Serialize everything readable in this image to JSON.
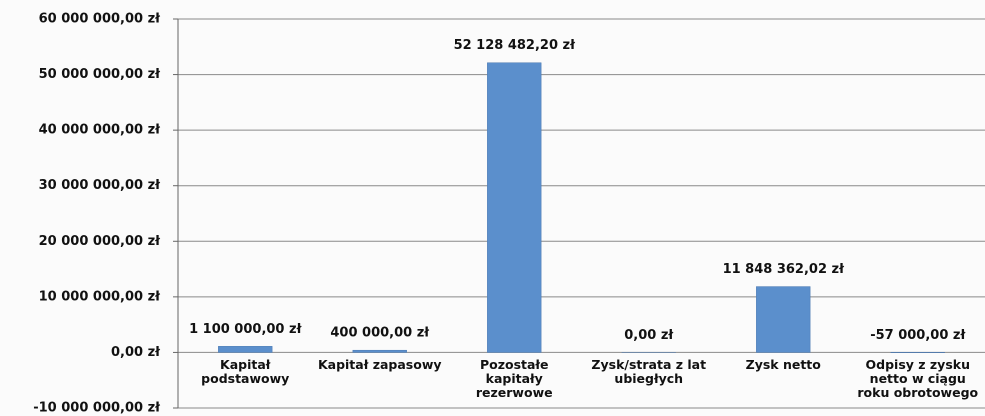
{
  "chart_data": {
    "type": "bar",
    "categories": [
      "Kapitał podstawowy",
      "Kapitał zapasowy",
      "Pozostałe kapitały rezerwowe",
      "Zysk/strata z lat ubiegłych",
      "Zysk netto",
      "Odpisy z zysku netto w ciągu roku obrotowego"
    ],
    "values": [
      1100000,
      400000,
      52128482.2,
      0,
      11848362.02,
      -57000
    ],
    "value_labels": [
      "1 100 000,00 zł",
      "400 000,00 zł",
      "52 128 482,20 zł",
      "0,00 zł",
      "11 848 362,02 zł",
      "-57 000,00 zł"
    ],
    "color": "#5b8fcc",
    "ylim": [
      -10000000,
      60000000
    ],
    "yticks": [
      {
        "value": -10000000,
        "label": "-10 000 000,00 zł"
      },
      {
        "value": 0,
        "label": "0,00 zł"
      },
      {
        "value": 10000000,
        "label": "10 000 000,00 zł"
      },
      {
        "value": 20000000,
        "label": "20 000 000,00 zł"
      },
      {
        "value": 30000000,
        "label": "30 000 000,00 zł"
      },
      {
        "value": 40000000,
        "label": "40 000 000,00 zł"
      },
      {
        "value": 50000000,
        "label": "50 000 000,00 zł"
      },
      {
        "value": 60000000,
        "label": "60 000 000,00 zł"
      }
    ],
    "grid": true
  }
}
